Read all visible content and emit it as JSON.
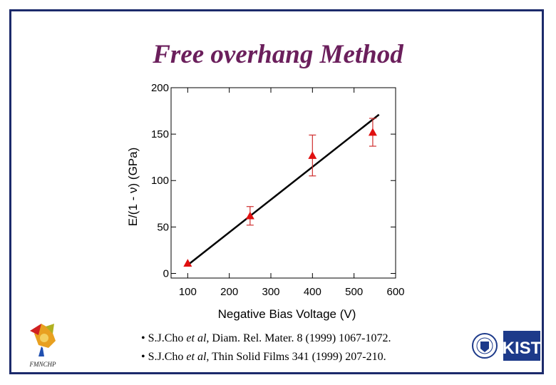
{
  "slide": {
    "title": "Free overhang Method"
  },
  "references": [
    {
      "prefix": "• S.J.Cho ",
      "etal": "et al",
      "suffix": ", Diam. Rel. Mater. 8 (1999) 1067-1072."
    },
    {
      "prefix": "• S.J.Cho ",
      "etal": "et al",
      "suffix": ", Thin Solid Films 341 (1999) 207-210."
    }
  ],
  "logos": {
    "left_text": "FMNCHP",
    "right_text": "KIST"
  },
  "chart_data": {
    "type": "scatter",
    "xlabel": "Negative Bias Voltage (V)",
    "ylabel": "E/(1 - ν) (GPa)",
    "xlim": [
      60,
      600
    ],
    "ylim": [
      -5,
      200
    ],
    "xticks": [
      100,
      200,
      300,
      400,
      500,
      600
    ],
    "yticks": [
      0,
      50,
      100,
      150,
      200
    ],
    "grid": false,
    "marker_color": "#e01010",
    "errorbar_color": "#d03030",
    "fit_color": "#000000",
    "points": [
      {
        "x": 100,
        "y": 11,
        "err": 0
      },
      {
        "x": 250,
        "y": 62,
        "err": 10
      },
      {
        "x": 400,
        "y": 127,
        "err": 22
      },
      {
        "x": 545,
        "y": 152,
        "err": 15
      }
    ],
    "fit_line": {
      "x": [
        100,
        560
      ],
      "y": [
        9,
        171
      ]
    }
  }
}
